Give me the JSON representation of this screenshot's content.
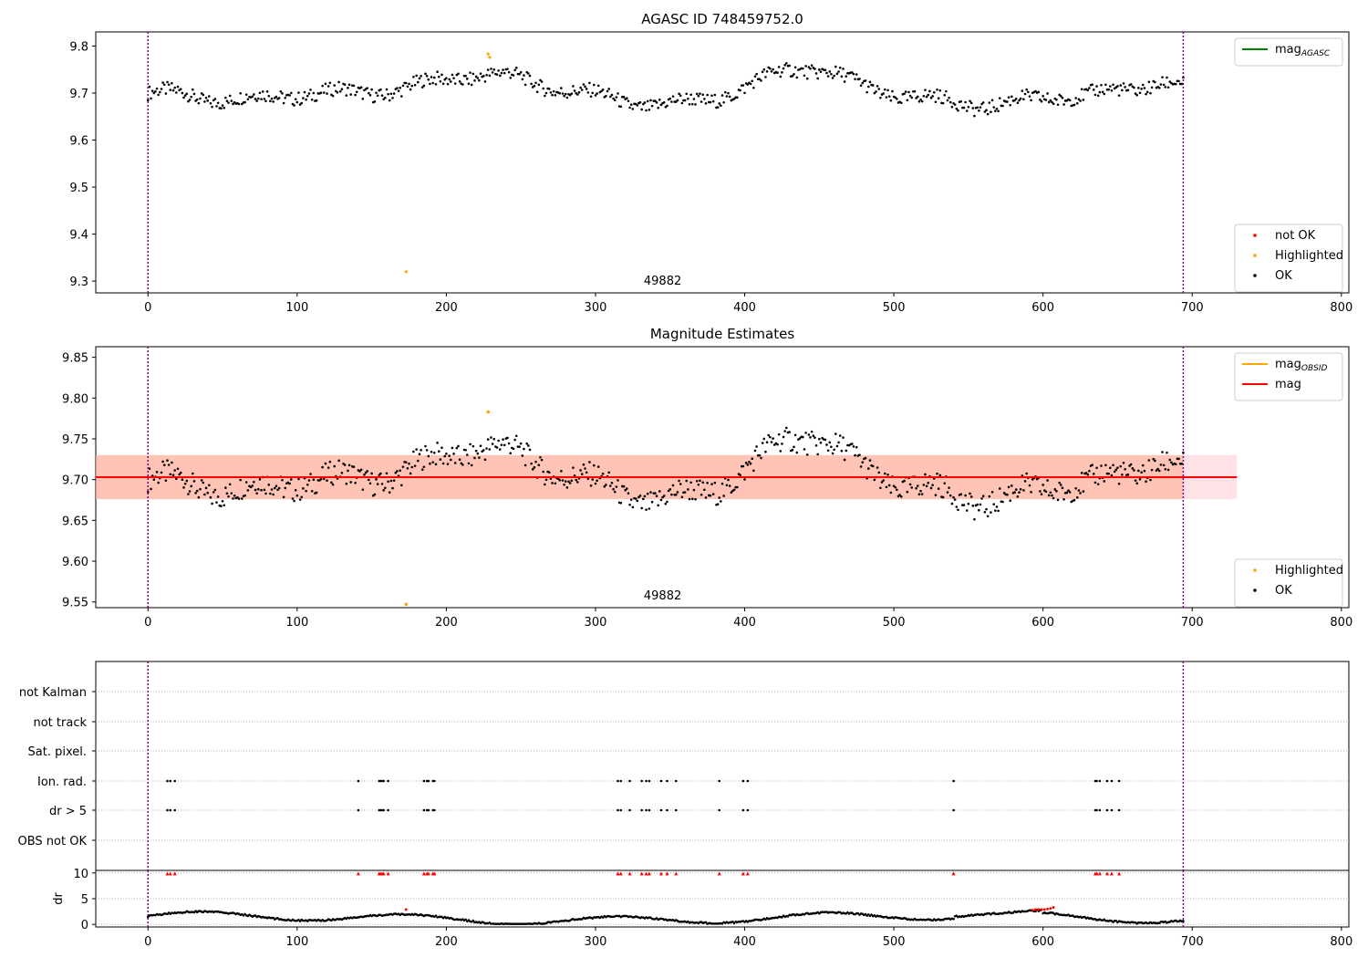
{
  "colors": {
    "ok": "#000000",
    "highlighted": "#ffa500",
    "not_ok": "#ff0000",
    "agasc_line": "#008000",
    "mag_line": "#ff0000",
    "obsid_line": "#ffa500",
    "band_orange": "#ffa07a",
    "band_pink": "#ffb6c1",
    "vline": "#800080",
    "grid": "#b0b0b0"
  },
  "chart_data": [
    {
      "type": "scatter",
      "title": "AGASC ID 748459752.0",
      "xlim": [
        -35,
        805
      ],
      "ylim": [
        9.275,
        9.83
      ],
      "xticks": [
        0,
        100,
        200,
        300,
        400,
        500,
        600,
        700,
        800
      ],
      "yticks": [
        9.3,
        9.4,
        9.5,
        9.6,
        9.7,
        9.8
      ],
      "obsid_label": "49882",
      "obsid_label_x": 345,
      "obs_boundaries": [
        0,
        694
      ],
      "legend_upper": [
        {
          "label": "mag",
          "sub": "AGASC",
          "kind": "line",
          "color": "#008000"
        }
      ],
      "legend_lower": [
        {
          "label": "not OK",
          "kind": "point",
          "color": "#ff0000"
        },
        {
          "label": "Highlighted",
          "kind": "point",
          "color": "#ffa500"
        },
        {
          "label": "OK",
          "kind": "point",
          "color": "#000000"
        }
      ],
      "series": [
        {
          "name": "OK",
          "generator": "mag_ok",
          "x_range": [
            0,
            694
          ],
          "step": 1
        },
        {
          "name": "Highlighted",
          "x": [
            173,
            228,
            229
          ],
          "y": [
            9.32,
            9.783,
            9.776
          ]
        }
      ]
    },
    {
      "type": "scatter",
      "title": "Magnitude Estimates",
      "xlim": [
        -35,
        805
      ],
      "ylim": [
        9.543,
        9.863
      ],
      "xticks": [
        0,
        100,
        200,
        300,
        400,
        500,
        600,
        700,
        800
      ],
      "yticks": [
        9.55,
        9.6,
        9.65,
        9.7,
        9.75,
        9.8,
        9.85
      ],
      "obsid_label": "49882",
      "obsid_label_x": 345,
      "obs_boundaries": [
        0,
        694
      ],
      "mag_mean": 9.703,
      "mag_band": [
        9.676,
        9.73
      ],
      "band_x": [
        -35,
        730
      ],
      "legend_upper": [
        {
          "label": "mag",
          "sub": "OBSID",
          "kind": "line",
          "color": "#ffa500"
        },
        {
          "label": "mag",
          "kind": "line",
          "color": "#ff0000"
        }
      ],
      "legend_lower": [
        {
          "label": "Highlighted",
          "kind": "point",
          "color": "#ffa500"
        },
        {
          "label": "OK",
          "kind": "point",
          "color": "#000000"
        }
      ],
      "series": [
        {
          "name": "OK",
          "generator": "mag_ok",
          "x_range": [
            0,
            694
          ],
          "step": 1
        },
        {
          "name": "Highlighted",
          "x": [
            173,
            228
          ],
          "y": [
            9.547,
            9.783
          ]
        }
      ]
    },
    {
      "type": "scatter",
      "title": "",
      "xlim": [
        -35,
        805
      ],
      "categories": [
        "not Kalman",
        "not track",
        "Sat. pixel.",
        "Ion. rad.",
        "dr > 5",
        "OBS not OK"
      ],
      "series": [
        {
          "name": "Ion. rad.",
          "x": [
            13,
            15,
            18,
            141,
            155,
            156,
            157,
            158,
            161,
            185,
            187,
            188,
            191,
            192,
            315,
            317,
            323,
            331,
            334,
            336,
            344,
            348,
            354,
            383,
            399,
            402,
            540,
            635,
            636,
            638,
            643,
            646,
            651
          ]
        },
        {
          "name": "dr > 5",
          "x": [
            13,
            15,
            18,
            141,
            155,
            156,
            157,
            158,
            161,
            185,
            187,
            188,
            191,
            192,
            315,
            317,
            323,
            331,
            334,
            336,
            344,
            348,
            354,
            383,
            399,
            402,
            540,
            635,
            636,
            638,
            643,
            646,
            651
          ]
        }
      ]
    },
    {
      "type": "scatter",
      "title": "",
      "ylabel": "dr",
      "xlim": [
        -35,
        805
      ],
      "ylim": [
        -0.5,
        10.5
      ],
      "xticks": [
        0,
        100,
        200,
        300,
        400,
        500,
        600,
        700,
        800
      ],
      "yticks": [
        0,
        5,
        10
      ],
      "series": [
        {
          "name": "OK",
          "generator": "dr_ok",
          "x_range": [
            0,
            694
          ],
          "step": 1
        },
        {
          "name": "not OK (dr>5, drawn at 10)",
          "x": [
            13,
            15,
            18,
            141,
            155,
            156,
            157,
            158,
            161,
            185,
            187,
            188,
            191,
            192,
            315,
            317,
            323,
            331,
            334,
            336,
            344,
            348,
            354,
            383,
            399,
            402,
            540,
            635,
            636,
            638,
            643,
            646,
            651
          ],
          "y_const": 9.9
        },
        {
          "name": "not OK (low)",
          "x": [
            173,
            593,
            595,
            597,
            599,
            601,
            603,
            605,
            607
          ],
          "y": [
            2.9,
            2.8,
            2.9,
            2.9,
            2.9,
            2.9,
            3.0,
            3.1,
            3.3
          ]
        }
      ]
    }
  ]
}
